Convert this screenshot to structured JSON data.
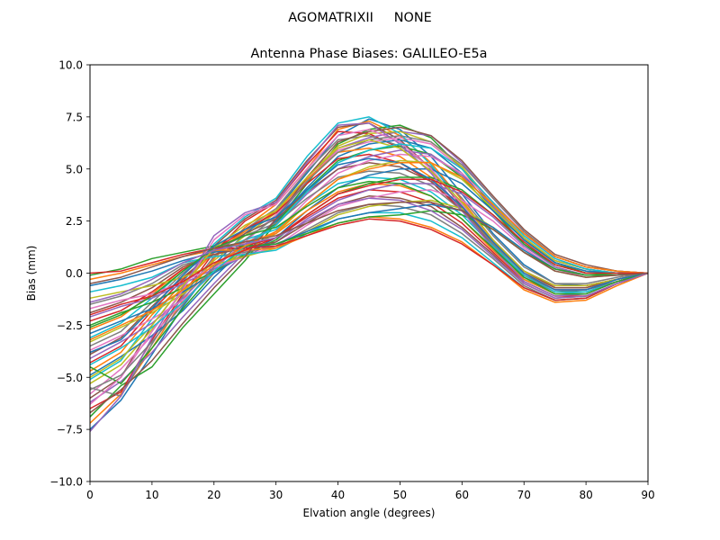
{
  "suptitle": "AGOMATRIXII     NONE",
  "chart_data": {
    "type": "line",
    "title": "Antenna Phase Biases: GALILEO-E5a",
    "xlabel": "Elvation angle (degrees)",
    "ylabel": "Bias (mm)",
    "xlim": [
      0,
      90
    ],
    "ylim": [
      -10,
      10
    ],
    "xticks": [
      0,
      10,
      20,
      30,
      40,
      50,
      60,
      70,
      80,
      90
    ],
    "yticks": [
      -10.0,
      -7.5,
      -5.0,
      -2.5,
      0.0,
      2.5,
      5.0,
      7.5,
      10.0
    ],
    "grid": false,
    "legend": "none",
    "x": [
      0,
      5,
      10,
      15,
      20,
      25,
      30,
      35,
      40,
      45,
      50,
      55,
      60,
      65,
      70,
      75,
      80,
      85,
      90
    ],
    "colors": [
      "#1f77b4",
      "#ff7f0e",
      "#2ca02c",
      "#d62728",
      "#9467bd",
      "#8c564b",
      "#e377c2",
      "#7f7f7f",
      "#bcbd22",
      "#17becf"
    ],
    "series": [
      {
        "values": [
          -7.5,
          -6.1,
          -3.9,
          -1.6,
          0.4,
          1.9,
          3.0,
          4.8,
          6.6,
          7.4,
          6.9,
          5.6,
          3.8,
          1.9,
          0.4,
          -0.5,
          -0.6,
          -0.3,
          0.0
        ]
      },
      {
        "values": [
          -7.2,
          -5.8,
          -3.6,
          -1.3,
          0.7,
          2.2,
          3.3,
          5.0,
          6.9,
          7.3,
          6.6,
          5.3,
          3.5,
          1.6,
          0.1,
          -0.7,
          -0.7,
          -0.3,
          0.0
        ]
      },
      {
        "values": [
          -6.9,
          -5.4,
          -4.5,
          -2.6,
          -1.0,
          0.6,
          2.4,
          4.3,
          6.2,
          6.9,
          7.1,
          6.5,
          5.0,
          3.2,
          1.6,
          0.5,
          0.0,
          -0.1,
          0.0
        ]
      },
      {
        "values": [
          -6.5,
          -5.7,
          -3.2,
          -1.0,
          1.0,
          2.5,
          3.4,
          5.2,
          6.8,
          6.7,
          6.0,
          4.9,
          3.3,
          1.5,
          0.1,
          -0.6,
          -0.6,
          -0.3,
          0.0
        ]
      },
      {
        "values": [
          -6.2,
          -5.2,
          -3.8,
          -2.1,
          -0.5,
          1.0,
          2.6,
          4.4,
          6.0,
          6.5,
          6.8,
          6.6,
          5.3,
          3.6,
          2.0,
          0.8,
          0.3,
          0.1,
          0.0
        ]
      },
      {
        "values": [
          -6.0,
          -5.0,
          -2.5,
          -0.6,
          1.3,
          2.6,
          3.5,
          5.4,
          7.0,
          7.2,
          6.4,
          5.0,
          3.2,
          1.3,
          -0.2,
          -0.9,
          -0.8,
          -0.4,
          0.0
        ]
      },
      {
        "values": [
          -5.8,
          -4.6,
          -3.0,
          -1.4,
          0.2,
          1.5,
          2.8,
          4.5,
          5.9,
          6.3,
          6.5,
          6.2,
          5.0,
          3.4,
          1.9,
          0.7,
          0.2,
          0.0,
          0.0
        ]
      },
      {
        "values": [
          -5.5,
          -5.9,
          -3.4,
          -1.1,
          0.8,
          2.1,
          3.1,
          4.9,
          6.4,
          6.6,
          6.1,
          5.1,
          3.6,
          1.8,
          0.3,
          -0.5,
          -0.5,
          -0.2,
          0.0
        ]
      },
      {
        "values": [
          -5.3,
          -4.4,
          -2.7,
          -0.9,
          0.6,
          1.8,
          2.9,
          4.6,
          6.1,
          6.7,
          6.8,
          6.3,
          5.1,
          3.3,
          1.7,
          0.5,
          0.1,
          0.0,
          0.0
        ]
      },
      {
        "values": [
          -5.1,
          -4.2,
          -2.2,
          -0.4,
          1.4,
          2.7,
          3.6,
          5.6,
          7.2,
          7.5,
          6.7,
          5.2,
          3.3,
          1.4,
          -0.3,
          -1.0,
          -0.9,
          -0.4,
          0.0
        ]
      },
      {
        "values": [
          -4.9,
          -4.0,
          -3.0,
          -1.8,
          -0.2,
          1.2,
          2.5,
          4.1,
          5.6,
          6.2,
          6.4,
          6.0,
          4.8,
          3.1,
          1.6,
          0.5,
          0.1,
          0.0,
          0.0
        ]
      },
      {
        "values": [
          -4.7,
          -3.8,
          -2.0,
          -0.5,
          1.0,
          2.0,
          3.0,
          4.5,
          5.8,
          6.0,
          5.6,
          4.6,
          3.1,
          1.4,
          0.0,
          -0.7,
          -0.7,
          -0.3,
          0.0
        ]
      },
      {
        "values": [
          -4.5,
          -5.3,
          -3.6,
          -1.7,
          0.0,
          1.3,
          2.4,
          4.0,
          5.4,
          5.9,
          6.1,
          5.7,
          4.6,
          3.0,
          1.4,
          0.3,
          -0.1,
          -0.1,
          0.0
        ]
      },
      {
        "values": [
          -4.3,
          -3.5,
          -1.8,
          -0.3,
          1.1,
          2.1,
          2.9,
          4.3,
          5.5,
          5.7,
          5.3,
          4.4,
          3.0,
          1.3,
          -0.1,
          -0.8,
          -0.8,
          -0.3,
          0.0
        ]
      },
      {
        "values": [
          -4.1,
          -3.3,
          -2.4,
          -1.2,
          0.3,
          1.4,
          2.3,
          3.8,
          5.0,
          5.6,
          5.9,
          5.7,
          4.7,
          3.2,
          1.7,
          0.6,
          0.2,
          0.0,
          0.0
        ]
      },
      {
        "values": [
          -3.9,
          -3.1,
          -1.6,
          -0.2,
          1.0,
          1.9,
          2.6,
          3.9,
          5.0,
          5.3,
          5.1,
          4.4,
          3.1,
          1.5,
          0.1,
          -0.7,
          -0.7,
          -0.3,
          0.0
        ]
      },
      {
        "values": [
          -3.7,
          -3.0,
          -2.2,
          -1.3,
          0.0,
          1.0,
          2.0,
          3.5,
          4.8,
          5.4,
          5.7,
          5.6,
          4.8,
          3.4,
          1.9,
          0.8,
          0.3,
          0.1,
          0.0
        ]
      },
      {
        "values": [
          -3.5,
          -2.8,
          -1.4,
          0.0,
          1.1,
          1.8,
          2.4,
          3.6,
          4.6,
          4.9,
          4.8,
          4.2,
          3.0,
          1.4,
          0.0,
          -0.8,
          -0.8,
          -0.3,
          0.0
        ]
      },
      {
        "values": [
          -3.3,
          -2.6,
          -1.9,
          -1.0,
          0.1,
          1.1,
          1.9,
          3.3,
          4.5,
          5.1,
          5.4,
          5.3,
          4.5,
          3.1,
          1.7,
          0.6,
          0.2,
          0.0,
          0.0
        ]
      },
      {
        "values": [
          -3.1,
          -2.4,
          -1.2,
          0.1,
          1.0,
          1.6,
          2.1,
          3.3,
          4.3,
          4.6,
          4.5,
          3.9,
          2.8,
          1.3,
          -0.1,
          -0.9,
          -0.9,
          -0.4,
          0.0
        ]
      },
      {
        "values": [
          -2.9,
          -2.3,
          -1.7,
          -0.9,
          0.0,
          0.9,
          1.7,
          3.0,
          4.1,
          4.7,
          5.0,
          5.0,
          4.3,
          3.0,
          1.6,
          0.5,
          0.1,
          0.0,
          0.0
        ]
      },
      {
        "values": [
          -2.7,
          -2.1,
          -1.0,
          0.2,
          1.0,
          1.5,
          1.9,
          3.0,
          3.9,
          4.3,
          4.2,
          3.7,
          2.6,
          1.1,
          -0.3,
          -1.0,
          -1.0,
          -0.4,
          0.0
        ]
      },
      {
        "values": [
          -2.5,
          -1.9,
          -1.4,
          -0.7,
          0.1,
          0.9,
          1.6,
          2.8,
          3.8,
          4.3,
          4.6,
          4.6,
          4.0,
          2.8,
          1.4,
          0.4,
          0.0,
          0.0,
          0.0
        ]
      },
      {
        "values": [
          -2.3,
          -1.8,
          -0.9,
          0.2,
          0.9,
          1.3,
          1.7,
          2.7,
          3.6,
          4.0,
          3.9,
          3.4,
          2.4,
          1.0,
          -0.4,
          -1.1,
          -1.1,
          -0.5,
          0.0
        ]
      },
      {
        "values": [
          -2.1,
          -1.6,
          -1.2,
          -0.5,
          0.2,
          0.8,
          1.5,
          2.6,
          3.5,
          4.0,
          4.3,
          4.3,
          3.8,
          2.7,
          1.3,
          0.3,
          -0.1,
          -0.1,
          0.0
        ]
      },
      {
        "values": [
          -1.9,
          -1.4,
          -0.7,
          0.3,
          0.9,
          1.2,
          1.5,
          2.4,
          3.3,
          3.7,
          3.6,
          3.2,
          2.2,
          0.9,
          -0.5,
          -1.2,
          -1.1,
          -0.5,
          0.0
        ]
      },
      {
        "values": [
          -1.7,
          -1.3,
          -1.0,
          -0.4,
          0.3,
          0.8,
          1.3,
          2.3,
          3.2,
          3.6,
          3.9,
          4.0,
          3.5,
          2.5,
          1.2,
          0.2,
          -0.2,
          -0.1,
          0.0
        ]
      },
      {
        "values": [
          -1.5,
          -1.1,
          -0.5,
          0.4,
          0.8,
          1.0,
          1.3,
          2.1,
          2.9,
          3.3,
          3.2,
          2.8,
          1.9,
          0.7,
          -0.6,
          -1.3,
          -1.2,
          -0.5,
          0.0
        ]
      },
      {
        "values": [
          -1.2,
          -0.9,
          -0.6,
          -0.2,
          0.4,
          0.8,
          1.2,
          2.0,
          2.8,
          3.2,
          3.4,
          3.5,
          3.1,
          2.2,
          1.0,
          0.1,
          -0.2,
          -0.1,
          0.0
        ]
      },
      {
        "values": [
          -0.9,
          -0.6,
          -0.2,
          0.5,
          0.8,
          0.9,
          1.1,
          1.9,
          2.6,
          2.9,
          2.9,
          2.5,
          1.7,
          0.5,
          -0.7,
          -1.3,
          -1.2,
          -0.5,
          0.0
        ]
      },
      {
        "values": [
          -0.6,
          -0.3,
          0.1,
          0.6,
          1.0,
          1.2,
          1.4,
          2.0,
          2.6,
          2.9,
          3.1,
          3.3,
          3.0,
          2.2,
          1.1,
          0.2,
          -0.1,
          -0.1,
          0.0
        ]
      },
      {
        "values": [
          -0.3,
          0.0,
          0.4,
          0.8,
          1.1,
          1.1,
          1.2,
          1.8,
          2.4,
          2.7,
          2.6,
          2.2,
          1.5,
          0.4,
          -0.8,
          -1.4,
          -1.3,
          -0.6,
          0.0
        ]
      },
      {
        "values": [
          -0.1,
          0.2,
          0.7,
          1.0,
          1.3,
          1.3,
          1.4,
          1.9,
          2.4,
          2.7,
          2.8,
          3.0,
          2.8,
          2.1,
          1.0,
          0.2,
          -0.1,
          -0.1,
          0.0
        ]
      },
      {
        "values": [
          0.0,
          0.1,
          0.5,
          0.9,
          1.2,
          1.2,
          1.3,
          1.8,
          2.3,
          2.6,
          2.5,
          2.1,
          1.4,
          0.4,
          -0.7,
          -1.3,
          -1.2,
          -0.5,
          0.0
        ]
      },
      {
        "values": [
          -7.6,
          -5.9,
          -3.1,
          -0.7,
          1.8,
          2.9,
          3.4,
          5.3,
          7.1,
          7.2,
          6.2,
          4.8,
          3.0,
          1.2,
          -0.4,
          -1.1,
          -1.0,
          -0.4,
          0.0
        ]
      },
      {
        "values": [
          -6.7,
          -5.6,
          -4.2,
          -2.4,
          -0.7,
          0.8,
          2.6,
          4.6,
          6.3,
          6.8,
          7.0,
          6.6,
          5.4,
          3.7,
          2.1,
          0.9,
          0.4,
          0.1,
          0.0
        ]
      },
      {
        "values": [
          -6.3,
          -5.0,
          -2.8,
          -0.8,
          1.6,
          2.8,
          3.3,
          5.0,
          6.6,
          6.9,
          6.3,
          5.0,
          3.3,
          1.5,
          0.0,
          -0.8,
          -0.8,
          -0.3,
          0.0
        ]
      },
      {
        "values": [
          -5.6,
          -4.9,
          -3.3,
          -1.5,
          0.3,
          1.6,
          2.7,
          4.4,
          5.8,
          6.4,
          6.6,
          6.3,
          5.2,
          3.6,
          2.0,
          0.8,
          0.3,
          0.1,
          0.0
        ]
      },
      {
        "values": [
          -5.0,
          -4.1,
          -2.5,
          -0.6,
          1.2,
          2.3,
          3.0,
          4.6,
          6.0,
          6.4,
          6.0,
          4.9,
          3.4,
          1.6,
          0.1,
          -0.6,
          -0.6,
          -0.3,
          0.0
        ]
      },
      {
        "values": [
          -4.4,
          -3.6,
          -2.6,
          -1.4,
          0.1,
          1.3,
          2.3,
          3.9,
          5.3,
          5.9,
          6.2,
          6.0,
          5.0,
          3.4,
          1.8,
          0.7,
          0.2,
          0.0,
          0.0
        ]
      },
      {
        "values": [
          -3.8,
          -3.2,
          -1.7,
          -0.1,
          1.3,
          2.1,
          2.7,
          4.0,
          5.2,
          5.5,
          5.3,
          4.5,
          3.2,
          1.5,
          0.0,
          -0.8,
          -0.8,
          -0.3,
          0.0
        ]
      },
      {
        "values": [
          -3.2,
          -2.5,
          -1.8,
          -0.8,
          0.4,
          1.3,
          2.0,
          3.3,
          4.5,
          5.0,
          5.3,
          5.3,
          4.6,
          3.3,
          1.9,
          0.8,
          0.3,
          0.1,
          0.0
        ]
      },
      {
        "values": [
          -2.6,
          -2.0,
          -1.1,
          0.1,
          1.2,
          1.8,
          2.2,
          3.2,
          4.1,
          4.4,
          4.3,
          3.7,
          2.6,
          1.2,
          -0.2,
          -1.0,
          -1.0,
          -0.4,
          0.0
        ]
      },
      {
        "values": [
          -2.0,
          -1.5,
          -1.1,
          -0.4,
          0.5,
          1.1,
          1.7,
          2.8,
          3.8,
          4.2,
          4.5,
          4.5,
          3.9,
          2.8,
          1.5,
          0.4,
          0.0,
          0.0,
          0.0
        ]
      },
      {
        "values": [
          -1.4,
          -1.0,
          -0.3,
          0.5,
          1.1,
          1.4,
          1.7,
          2.5,
          3.3,
          3.6,
          3.5,
          3.0,
          2.1,
          0.8,
          -0.5,
          -1.2,
          -1.1,
          -0.5,
          0.0
        ]
      },
      {
        "values": [
          -0.5,
          -0.2,
          0.3,
          0.8,
          1.2,
          1.5,
          1.8,
          2.4,
          3.0,
          3.3,
          3.4,
          3.4,
          3.0,
          2.1,
          1.0,
          0.1,
          -0.2,
          -0.1,
          0.0
        ]
      }
    ]
  }
}
